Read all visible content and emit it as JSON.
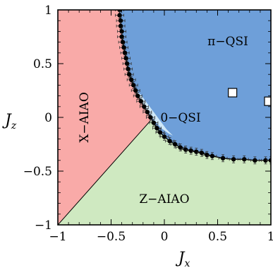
{
  "chart_data": {
    "type": "scatter",
    "xlabel": "J_x",
    "ylabel": "J_z",
    "xlim": [
      -1,
      1
    ],
    "ylim": [
      -1,
      1
    ],
    "x_ticks": [
      -1,
      -0.5,
      0,
      0.5,
      1
    ],
    "y_ticks": [
      -1,
      -0.5,
      0,
      0.5,
      1
    ],
    "x_tick_labels": [
      "−1",
      "−0.5",
      "0",
      "0.5",
      "1"
    ],
    "y_tick_labels": [
      "−1",
      "−0.5",
      "0",
      "0.5",
      "1"
    ],
    "grid": false,
    "regions": [
      {
        "label": "X−AIAO",
        "color": "#f9aaa8"
      },
      {
        "label": "Z−AIAO",
        "color": "#cfe9c1"
      },
      {
        "label": "π−QSI",
        "color": "#6e9fd9"
      },
      {
        "label": "0−QSI",
        "color": "#cfe8f8"
      }
    ],
    "series": [
      {
        "marker": "filled-circle",
        "color": "#000000",
        "points": [
          [
            -0.42,
            1.0
          ],
          [
            -0.42,
            0.95
          ],
          [
            -0.41,
            0.9
          ],
          [
            -0.41,
            0.85
          ],
          [
            -0.4,
            0.8
          ],
          [
            -0.4,
            0.75
          ],
          [
            -0.39,
            0.7
          ],
          [
            -0.38,
            0.65
          ],
          [
            -0.37,
            0.6
          ],
          [
            -0.36,
            0.55
          ],
          [
            -0.35,
            0.5
          ],
          [
            -0.34,
            0.45
          ],
          [
            -0.33,
            0.4
          ],
          [
            -0.31,
            0.35
          ],
          [
            -0.29,
            0.3
          ],
          [
            -0.27,
            0.25
          ],
          [
            -0.25,
            0.2
          ],
          [
            -0.22,
            0.15
          ],
          [
            -0.19,
            0.1
          ],
          [
            -0.16,
            0.05
          ],
          [
            -0.13,
            0.0
          ],
          [
            -0.1,
            -0.05
          ],
          [
            -0.07,
            -0.1
          ],
          [
            -0.04,
            -0.14
          ],
          [
            0.0,
            -0.18
          ],
          [
            0.05,
            -0.22
          ],
          [
            0.1,
            -0.25
          ],
          [
            0.15,
            -0.28
          ],
          [
            0.2,
            -0.3
          ],
          [
            0.25,
            -0.31
          ],
          [
            0.3,
            -0.32
          ],
          [
            0.35,
            -0.33
          ],
          [
            0.4,
            -0.35
          ],
          [
            0.45,
            -0.36
          ],
          [
            0.55,
            -0.38
          ],
          [
            0.65,
            -0.39
          ],
          [
            0.75,
            -0.39
          ],
          [
            0.85,
            -0.4
          ],
          [
            0.95,
            -0.4
          ],
          [
            1.0,
            -0.4
          ]
        ]
      },
      {
        "marker": "open-square",
        "color": "#000000",
        "points": [
          [
            0.64,
            0.23
          ],
          [
            0.98,
            0.15
          ]
        ]
      }
    ]
  }
}
